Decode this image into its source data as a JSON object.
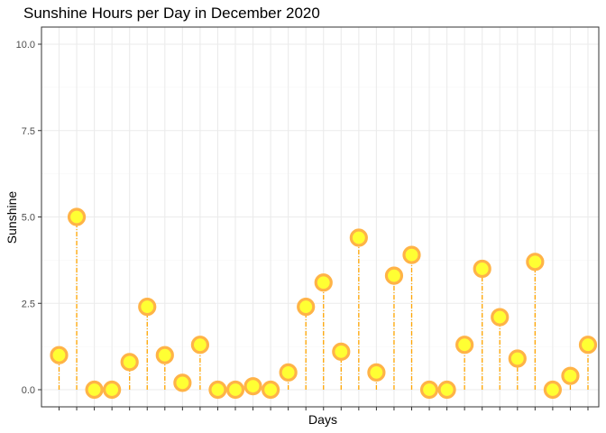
{
  "chart_data": {
    "type": "lollipop",
    "title": "Sunshine Hours per Day in December 2020",
    "xlabel": "Days",
    "ylabel": "Sunshine",
    "x": [
      1,
      2,
      3,
      4,
      5,
      6,
      7,
      8,
      9,
      10,
      11,
      12,
      13,
      14,
      15,
      16,
      17,
      18,
      19,
      20,
      21,
      22,
      23,
      24,
      25,
      26,
      27,
      28,
      29,
      30,
      31
    ],
    "values": [
      1.0,
      5.0,
      0.0,
      0.0,
      0.8,
      2.4,
      1.0,
      0.2,
      1.3,
      0.0,
      0.0,
      0.1,
      0.0,
      0.5,
      2.4,
      3.1,
      1.1,
      4.4,
      0.5,
      3.3,
      3.9,
      0.0,
      0.0,
      1.3,
      3.5,
      2.1,
      0.9,
      3.7,
      0.0,
      0.4,
      1.3
    ],
    "ylim": [
      0,
      10
    ],
    "y_ticks": [
      "0.0",
      "2.5",
      "5.0",
      "7.5",
      "10.0"
    ],
    "x_tick_labels_shown": false,
    "grid": true,
    "legend": "none",
    "colors": {
      "point_fill": "#ffff33",
      "point_outline": "#ffb347",
      "stem": "#ffa500",
      "grid_major": "#ebebeb",
      "grid_minor": "#f5f5f5",
      "panel_border": "#333333"
    }
  }
}
